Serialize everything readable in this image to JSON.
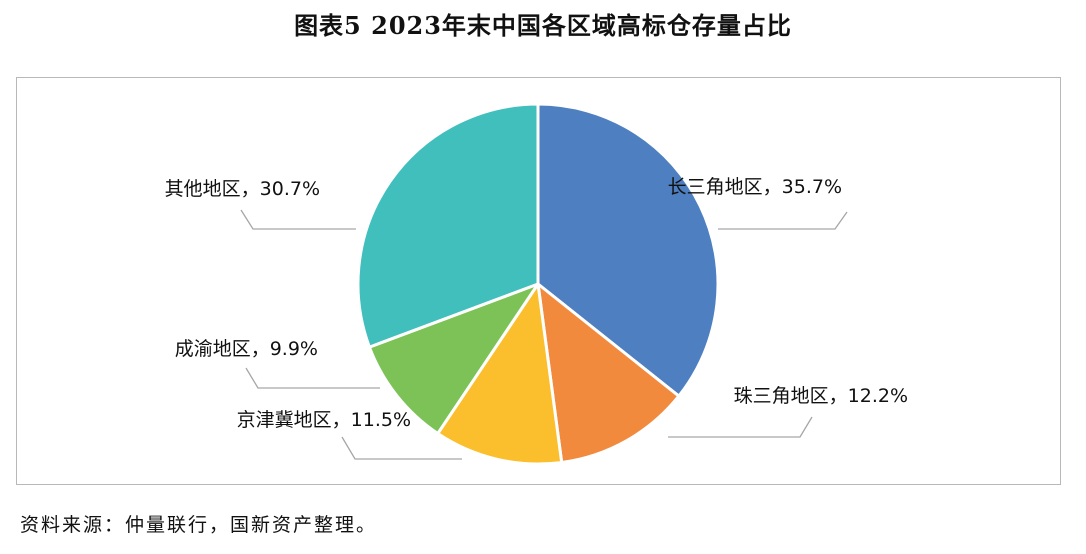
{
  "title": "图表5 2023年末中国各区域高标仓存量占比",
  "source": "资料来源：仲量联行，国新资产整理。",
  "chart_data": {
    "type": "pie",
    "start": "12 o'clock, clockwise",
    "slices": [
      {
        "name": "长三角地区",
        "value": 35.7,
        "label": "长三角地区，35.7%",
        "color": "#4e7fc0"
      },
      {
        "name": "珠三角地区",
        "value": 12.2,
        "label": "珠三角地区，12.2%",
        "color": "#f28a3d"
      },
      {
        "name": "京津冀地区",
        "value": 11.5,
        "label": "京津冀地区，11.5%",
        "color": "#fbbf2e"
      },
      {
        "name": "成渝地区",
        "value": 9.9,
        "label": "成渝地区，9.9%",
        "color": "#7cc257"
      },
      {
        "name": "其他地区",
        "value": 30.7,
        "label": "其他地区，30.7%",
        "color": "#41bfbd"
      }
    ]
  }
}
